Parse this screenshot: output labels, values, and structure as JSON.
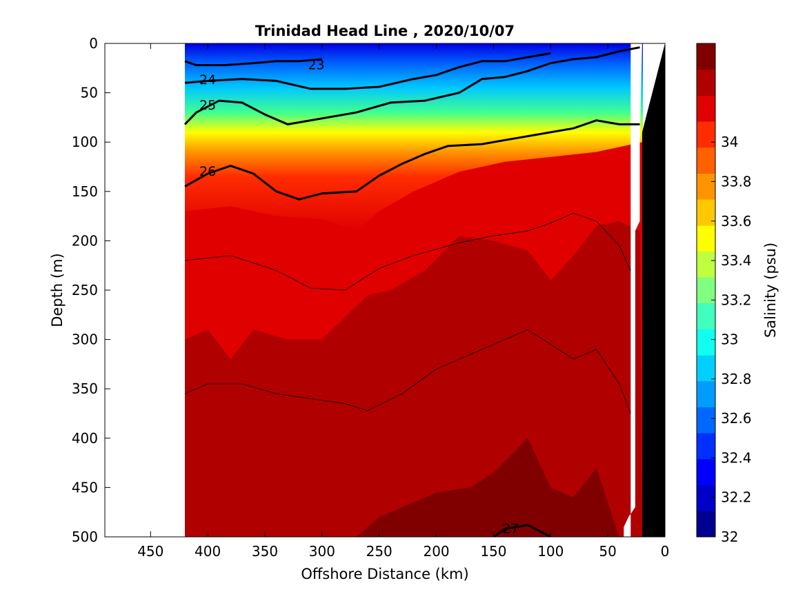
{
  "chart_data": {
    "type": "heatmap",
    "title": "Trinidad Head Line , 2020/10/07",
    "xlabel": "Offshore Distance (km)",
    "ylabel": "Depth (m)",
    "colorbar_label": "Salinity (psu)",
    "xlim": [
      490,
      0
    ],
    "ylim": [
      500,
      0
    ],
    "x_reversed": true,
    "y_reversed": true,
    "x_ticks": [
      450,
      400,
      350,
      300,
      250,
      200,
      150,
      100,
      50,
      0
    ],
    "y_ticks": [
      0,
      50,
      100,
      150,
      200,
      250,
      300,
      350,
      400,
      450,
      500
    ],
    "colorbar_range": [
      32,
      34.5
    ],
    "colorbar_ticks": [
      32,
      32.2,
      32.4,
      32.6,
      32.8,
      33,
      33.2,
      33.4,
      33.6,
      33.8,
      34
    ],
    "colorbar_tick_labels": [
      "32",
      "32.2",
      "32.4",
      "32.6",
      "32.8",
      "33",
      "33.2",
      "33.4",
      "33.6",
      "33.8",
      "34"
    ],
    "colormap": [
      "#000090",
      "#0000c8",
      "#0000ff",
      "#0030ff",
      "#0068ff",
      "#009cff",
      "#00d0ff",
      "#10ffef",
      "#40ffbf",
      "#80ff80",
      "#c0ff40",
      "#ffff00",
      "#ffc800",
      "#ff9400",
      "#ff6000",
      "#ff2c00",
      "#e00000",
      "#b00000",
      "#800000"
    ],
    "data_extent_km": [
      420,
      20
    ],
    "density_contours": [
      {
        "level": 23,
        "label": "23",
        "label_at": [
          305,
          22
        ],
        "points": [
          [
            420,
            18
          ],
          [
            410,
            22
          ],
          [
            385,
            22
          ],
          [
            360,
            20
          ],
          [
            340,
            18
          ],
          [
            320,
            18
          ],
          [
            300,
            16
          ]
        ]
      },
      {
        "level": 24,
        "label": "24",
        "label_at": [
          400,
          37
        ],
        "points": [
          [
            420,
            40
          ],
          [
            400,
            38
          ],
          [
            370,
            36
          ],
          [
            340,
            38
          ],
          [
            310,
            46
          ],
          [
            280,
            46
          ],
          [
            250,
            44
          ],
          [
            220,
            36
          ],
          [
            200,
            32
          ],
          [
            180,
            24
          ],
          [
            160,
            18
          ],
          [
            140,
            18
          ],
          [
            120,
            14
          ],
          [
            100,
            10
          ]
        ]
      },
      {
        "level": 25,
        "label": "25",
        "label_at": [
          400,
          63
        ],
        "points": [
          [
            420,
            82
          ],
          [
            410,
            70
          ],
          [
            390,
            58
          ],
          [
            370,
            60
          ],
          [
            350,
            72
          ],
          [
            330,
            82
          ],
          [
            300,
            76
          ],
          [
            270,
            70
          ],
          [
            240,
            60
          ],
          [
            210,
            58
          ],
          [
            180,
            50
          ],
          [
            160,
            36
          ],
          [
            140,
            34
          ],
          [
            120,
            28
          ],
          [
            100,
            20
          ],
          [
            80,
            16
          ],
          [
            60,
            14
          ],
          [
            40,
            8
          ],
          [
            22,
            4
          ]
        ]
      },
      {
        "level": 26,
        "label": "26",
        "label_at": [
          400,
          130
        ],
        "points": [
          [
            420,
            145
          ],
          [
            400,
            132
          ],
          [
            380,
            124
          ],
          [
            360,
            132
          ],
          [
            340,
            150
          ],
          [
            320,
            158
          ],
          [
            300,
            152
          ],
          [
            270,
            150
          ],
          [
            250,
            134
          ],
          [
            230,
            122
          ],
          [
            210,
            112
          ],
          [
            190,
            104
          ],
          [
            160,
            102
          ],
          [
            140,
            98
          ],
          [
            120,
            94
          ],
          [
            100,
            90
          ],
          [
            80,
            86
          ],
          [
            60,
            78
          ],
          [
            40,
            82
          ],
          [
            22,
            82
          ]
        ]
      },
      {
        "level": 27,
        "label": "27",
        "label_at": [
          135,
          492
        ],
        "points": [
          [
            150,
            500
          ],
          [
            140,
            492
          ],
          [
            120,
            488
          ],
          [
            100,
            500
          ]
        ]
      }
    ],
    "thin_contours": [
      [
        [
          420,
          220
        ],
        [
          380,
          215
        ],
        [
          340,
          230
        ],
        [
          310,
          248
        ],
        [
          280,
          250
        ],
        [
          250,
          228
        ],
        [
          220,
          215
        ],
        [
          180,
          202
        ],
        [
          150,
          195
        ],
        [
          120,
          190
        ],
        [
          100,
          182
        ],
        [
          80,
          172
        ],
        [
          60,
          180
        ],
        [
          40,
          205
        ],
        [
          30,
          230
        ]
      ],
      [
        [
          420,
          355
        ],
        [
          400,
          345
        ],
        [
          370,
          345
        ],
        [
          340,
          355
        ],
        [
          310,
          360
        ],
        [
          280,
          365
        ],
        [
          260,
          372
        ],
        [
          230,
          355
        ],
        [
          200,
          330
        ],
        [
          170,
          315
        ],
        [
          140,
          300
        ],
        [
          120,
          290
        ],
        [
          100,
          305
        ],
        [
          80,
          320
        ],
        [
          60,
          310
        ],
        [
          40,
          345
        ],
        [
          30,
          375
        ]
      ]
    ]
  }
}
